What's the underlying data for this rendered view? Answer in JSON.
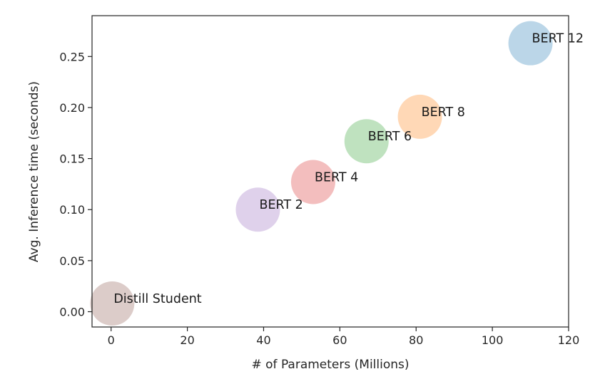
{
  "chart_data": {
    "type": "scatter",
    "title": "",
    "xlabel": "# of Parameters (Millions)",
    "ylabel": "Avg. Inference time (seconds)",
    "xlim": [
      -5,
      120
    ],
    "ylim": [
      -0.015,
      0.29
    ],
    "xticks": [
      0,
      20,
      40,
      60,
      80,
      100,
      120
    ],
    "yticks": [
      0.0,
      0.05,
      0.1,
      0.15,
      0.2,
      0.25
    ],
    "xtick_labels": [
      "0",
      "20",
      "40",
      "60",
      "80",
      "100",
      "120"
    ],
    "ytick_labels": [
      "0.00",
      "0.05",
      "0.10",
      "0.15",
      "0.20",
      "0.25"
    ],
    "grid": false,
    "points": [
      {
        "label": "BERT 12",
        "x": 110,
        "y": 0.263,
        "color": "#1f77b4"
      },
      {
        "label": "BERT 8",
        "x": 81,
        "y": 0.191,
        "color": "#ff7f0e"
      },
      {
        "label": "BERT 6",
        "x": 67,
        "y": 0.167,
        "color": "#2ca02c"
      },
      {
        "label": "BERT 4",
        "x": 53,
        "y": 0.127,
        "color": "#d62728"
      },
      {
        "label": "BERT 2",
        "x": 38.5,
        "y": 0.1,
        "color": "#9467bd"
      },
      {
        "label": "Distill Student",
        "x": 0.3,
        "y": 0.008,
        "color": "#8c564b"
      }
    ]
  }
}
